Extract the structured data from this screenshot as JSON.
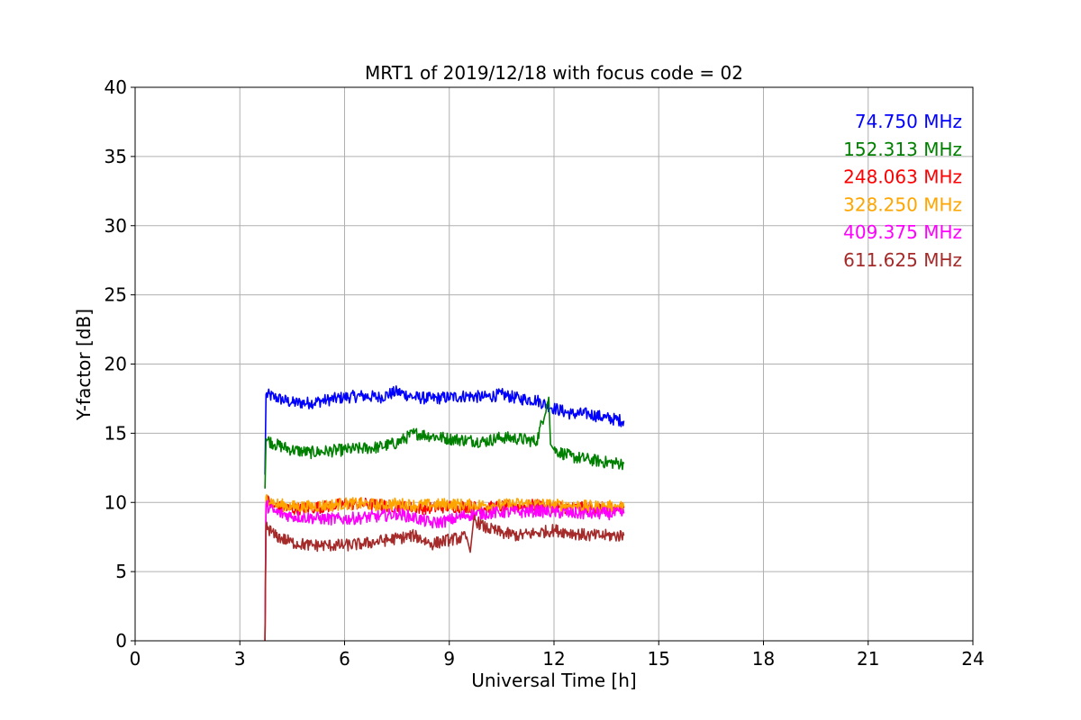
{
  "chart_data": {
    "type": "line",
    "title": "MRT1 of 2019/12/18 with focus code = 02",
    "xlabel": "Universal Time [h]",
    "ylabel": "Y-factor [dB]",
    "xlim": [
      0,
      24
    ],
    "ylim": [
      0,
      40
    ],
    "xticks": [
      0,
      3,
      6,
      9,
      12,
      15,
      18,
      21,
      24
    ],
    "yticks": [
      0,
      5,
      10,
      15,
      20,
      25,
      30,
      35,
      40
    ],
    "xtick_labels": [
      "0",
      "3",
      "6",
      "9",
      "12",
      "15",
      "18",
      "21",
      "24"
    ],
    "ytick_labels": [
      "0",
      "5",
      "10",
      "15",
      "20",
      "25",
      "30",
      "35",
      "40"
    ],
    "grid": true,
    "legend_placement": "top-right",
    "series": [
      {
        "name": "74.750 MHz",
        "color": "#0000ff",
        "x": [
          3.72,
          3.75,
          4.0,
          4.5,
          5.0,
          5.5,
          6.0,
          6.5,
          7.0,
          7.5,
          8.0,
          8.5,
          9.0,
          9.5,
          10.0,
          10.5,
          11.0,
          11.5,
          12.0,
          12.5,
          13.0,
          13.5,
          14.0
        ],
        "y": [
          12.0,
          17.8,
          17.6,
          17.2,
          17.2,
          17.4,
          17.6,
          17.7,
          17.6,
          18.0,
          17.6,
          17.5,
          17.6,
          17.7,
          17.6,
          17.8,
          17.5,
          17.4,
          16.8,
          16.4,
          16.4,
          16.1,
          15.9
        ]
      },
      {
        "name": "152.313 MHz",
        "color": "#008000",
        "x": [
          3.72,
          3.75,
          4.0,
          4.5,
          5.0,
          5.5,
          6.0,
          6.5,
          7.0,
          7.5,
          8.0,
          8.5,
          9.0,
          9.5,
          10.0,
          10.5,
          11.0,
          11.5,
          11.85,
          11.9,
          12.0,
          12.5,
          13.0,
          13.5,
          14.0
        ],
        "y": [
          11.0,
          14.6,
          14.2,
          13.8,
          13.6,
          13.7,
          13.8,
          13.9,
          14.0,
          14.3,
          15.0,
          14.8,
          14.6,
          14.5,
          14.4,
          14.7,
          14.6,
          14.4,
          17.6,
          14.2,
          13.8,
          13.3,
          13.1,
          12.9,
          12.8
        ]
      },
      {
        "name": "248.063 MHz",
        "color": "#ff0000",
        "x": [
          3.72,
          3.75,
          4.0,
          4.5,
          5.0,
          5.5,
          6.0,
          6.5,
          7.0,
          7.5,
          8.0,
          8.5,
          9.0,
          9.5,
          10.0,
          10.5,
          11.0,
          11.5,
          12.0,
          12.5,
          13.0,
          13.5,
          14.0
        ],
        "y": [
          0.0,
          10.2,
          9.7,
          9.5,
          9.6,
          9.7,
          9.9,
          9.9,
          9.8,
          9.7,
          9.6,
          9.6,
          9.7,
          9.7,
          9.6,
          9.7,
          9.7,
          9.8,
          9.7,
          9.6,
          9.6,
          9.6,
          9.6
        ]
      },
      {
        "name": "328.250 MHz",
        "color": "#ffa500",
        "x": [
          3.72,
          3.75,
          4.0,
          4.5,
          5.0,
          5.5,
          6.0,
          6.5,
          7.0,
          7.5,
          8.0,
          8.5,
          9.0,
          9.5,
          10.0,
          10.5,
          11.0,
          11.5,
          12.0,
          12.5,
          13.0,
          13.5,
          14.0
        ],
        "y": [
          0.0,
          10.4,
          9.9,
          9.7,
          9.7,
          9.8,
          9.9,
          9.9,
          9.8,
          9.9,
          9.8,
          9.8,
          9.9,
          9.8,
          9.8,
          9.8,
          9.9,
          9.9,
          9.8,
          9.8,
          9.7,
          9.7,
          9.7
        ]
      },
      {
        "name": "409.375 MHz",
        "color": "#ff00ff",
        "x": [
          3.72,
          3.75,
          4.0,
          4.5,
          5.0,
          5.5,
          6.0,
          6.5,
          7.0,
          7.5,
          8.0,
          8.5,
          9.0,
          9.5,
          10.0,
          10.5,
          11.0,
          11.5,
          12.0,
          12.5,
          13.0,
          13.5,
          14.0
        ],
        "y": [
          0.0,
          9.8,
          9.3,
          9.0,
          8.9,
          8.8,
          8.8,
          8.9,
          9.0,
          9.2,
          8.9,
          8.5,
          8.7,
          9.1,
          9.2,
          9.3,
          9.3,
          9.4,
          9.3,
          9.2,
          9.2,
          9.2,
          9.2
        ]
      },
      {
        "name": "611.625 MHz",
        "color": "#a52a2a",
        "x": [
          3.72,
          3.75,
          4.0,
          4.5,
          5.0,
          5.5,
          6.0,
          6.5,
          7.0,
          7.5,
          8.0,
          8.5,
          9.0,
          9.5,
          9.6,
          9.7,
          10.0,
          10.5,
          11.0,
          11.5,
          12.0,
          12.5,
          13.0,
          13.5,
          14.0
        ],
        "y": [
          0.0,
          8.3,
          7.6,
          7.1,
          6.9,
          6.9,
          6.9,
          7.0,
          7.2,
          7.4,
          7.6,
          7.0,
          7.3,
          7.5,
          6.4,
          8.8,
          8.2,
          7.8,
          7.6,
          7.8,
          8.0,
          7.8,
          7.6,
          7.6,
          7.6
        ]
      }
    ]
  }
}
